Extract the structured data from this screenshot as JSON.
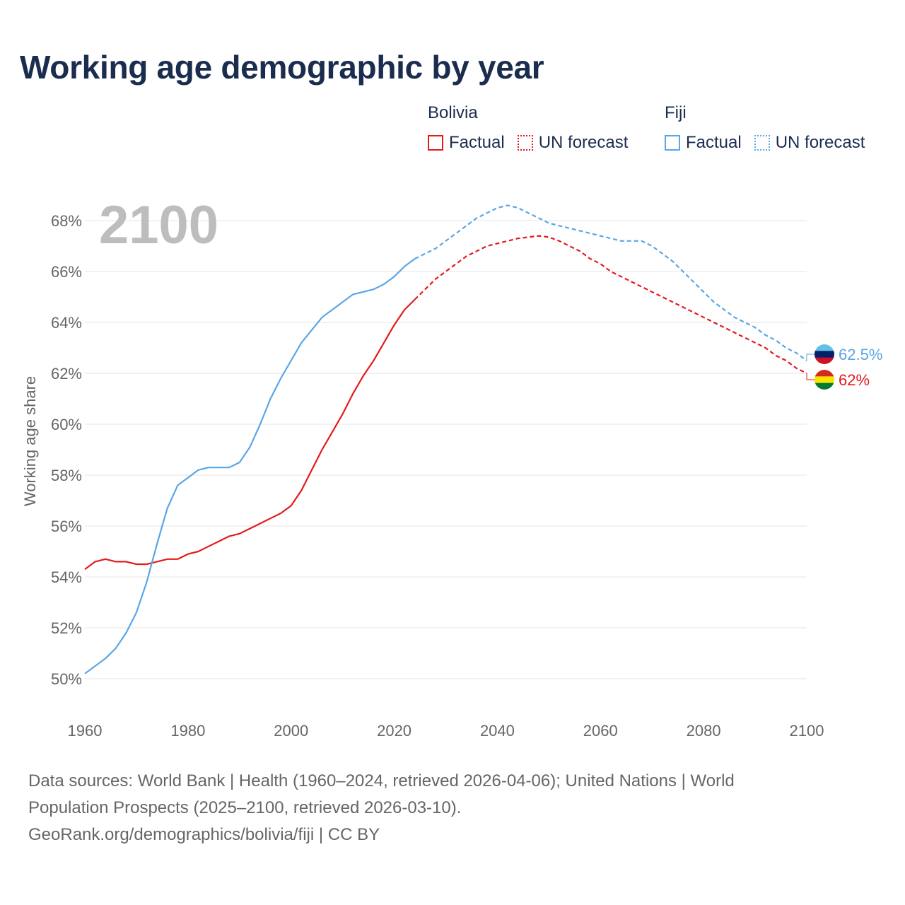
{
  "title": "Working age demographic by year",
  "legend": {
    "groups": [
      {
        "name": "Bolivia",
        "factual_label": "Factual",
        "forecast_label": "UN forecast",
        "color": "#e41a1c"
      },
      {
        "name": "Fiji",
        "factual_label": "Factual",
        "forecast_label": "UN forecast",
        "color": "#5aa6e6"
      }
    ]
  },
  "sources": {
    "line1": "Data sources: World Bank | Health (1960–2024, retrieved 2026-04-06); United Nations | World",
    "line2": "Population Prospects (2025–2100, retrieved 2026-03-10).",
    "line3": "GeoRank.org/demographics/bolivia/fiji | CC BY"
  },
  "chart_data": {
    "type": "line",
    "year_label": "2100",
    "ylabel": "Working age share",
    "xlim": [
      1960,
      2100
    ],
    "ylim": [
      49,
      69
    ],
    "xticks": [
      1960,
      1980,
      2000,
      2020,
      2040,
      2060,
      2080,
      2100
    ],
    "xtick_labels": [
      "1960",
      "1980",
      "2000",
      "2020",
      "2040",
      "2060",
      "2080",
      "2100"
    ],
    "yticks": [
      50,
      52,
      54,
      56,
      58,
      60,
      62,
      64,
      66,
      68
    ],
    "ytick_labels": [
      "50%",
      "52%",
      "54%",
      "56%",
      "58%",
      "60%",
      "62%",
      "64%",
      "66%",
      "68%"
    ],
    "grid": true,
    "forecast_start": 2024,
    "series": [
      {
        "name": "Bolivia",
        "color": "#e41a1c",
        "end_label": "62%",
        "flag_colors": [
          "#d52b1e",
          "#f9e300",
          "#007934"
        ],
        "x": [
          1960,
          1962,
          1964,
          1966,
          1968,
          1970,
          1972,
          1974,
          1976,
          1978,
          1980,
          1982,
          1984,
          1986,
          1988,
          1990,
          1992,
          1994,
          1996,
          1998,
          2000,
          2002,
          2004,
          2006,
          2008,
          2010,
          2012,
          2014,
          2016,
          2018,
          2020,
          2022,
          2024,
          2026,
          2028,
          2030,
          2032,
          2034,
          2036,
          2038,
          2040,
          2042,
          2044,
          2046,
          2048,
          2050,
          2052,
          2054,
          2056,
          2058,
          2060,
          2062,
          2064,
          2066,
          2068,
          2070,
          2072,
          2074,
          2076,
          2078,
          2080,
          2082,
          2084,
          2086,
          2088,
          2090,
          2092,
          2094,
          2096,
          2098,
          2100
        ],
        "values": [
          54.3,
          54.6,
          54.7,
          54.6,
          54.6,
          54.5,
          54.5,
          54.6,
          54.7,
          54.7,
          54.9,
          55.0,
          55.2,
          55.4,
          55.6,
          55.7,
          55.9,
          56.1,
          56.3,
          56.5,
          56.8,
          57.4,
          58.2,
          59.0,
          59.7,
          60.4,
          61.2,
          61.9,
          62.5,
          63.2,
          63.9,
          64.5,
          64.9,
          65.3,
          65.7,
          66.0,
          66.3,
          66.6,
          66.8,
          67.0,
          67.1,
          67.2,
          67.3,
          67.35,
          67.4,
          67.35,
          67.2,
          67.0,
          66.8,
          66.5,
          66.3,
          66.0,
          65.8,
          65.6,
          65.4,
          65.2,
          65.0,
          64.8,
          64.6,
          64.4,
          64.2,
          64.0,
          63.8,
          63.6,
          63.4,
          63.2,
          63.0,
          62.7,
          62.5,
          62.2,
          62.0
        ]
      },
      {
        "name": "Fiji",
        "color": "#5aa6e6",
        "end_label": "62.5%",
        "flag_colors": [
          "#68bfe5",
          "#012169",
          "#ce1126"
        ],
        "x": [
          1960,
          1962,
          1964,
          1966,
          1968,
          1970,
          1972,
          1974,
          1976,
          1978,
          1980,
          1982,
          1984,
          1986,
          1988,
          1990,
          1992,
          1994,
          1996,
          1998,
          2000,
          2002,
          2004,
          2006,
          2008,
          2010,
          2012,
          2014,
          2016,
          2018,
          2020,
          2022,
          2024,
          2026,
          2028,
          2030,
          2032,
          2034,
          2036,
          2038,
          2040,
          2042,
          2044,
          2046,
          2048,
          2050,
          2052,
          2054,
          2056,
          2058,
          2060,
          2062,
          2064,
          2066,
          2068,
          2070,
          2072,
          2074,
          2076,
          2078,
          2080,
          2082,
          2084,
          2086,
          2088,
          2090,
          2092,
          2094,
          2096,
          2098,
          2100
        ],
        "values": [
          50.2,
          50.5,
          50.8,
          51.2,
          51.8,
          52.6,
          53.8,
          55.3,
          56.7,
          57.6,
          57.9,
          58.2,
          58.3,
          58.3,
          58.3,
          58.5,
          59.1,
          60.0,
          61.0,
          61.8,
          62.5,
          63.2,
          63.7,
          64.2,
          64.5,
          64.8,
          65.1,
          65.2,
          65.3,
          65.5,
          65.8,
          66.2,
          66.5,
          66.7,
          66.9,
          67.2,
          67.5,
          67.8,
          68.1,
          68.3,
          68.5,
          68.6,
          68.5,
          68.3,
          68.1,
          67.9,
          67.8,
          67.7,
          67.6,
          67.5,
          67.4,
          67.3,
          67.2,
          67.2,
          67.2,
          67.0,
          66.7,
          66.4,
          66.0,
          65.6,
          65.2,
          64.8,
          64.5,
          64.2,
          64.0,
          63.8,
          63.5,
          63.3,
          63.0,
          62.8,
          62.5
        ]
      }
    ]
  }
}
